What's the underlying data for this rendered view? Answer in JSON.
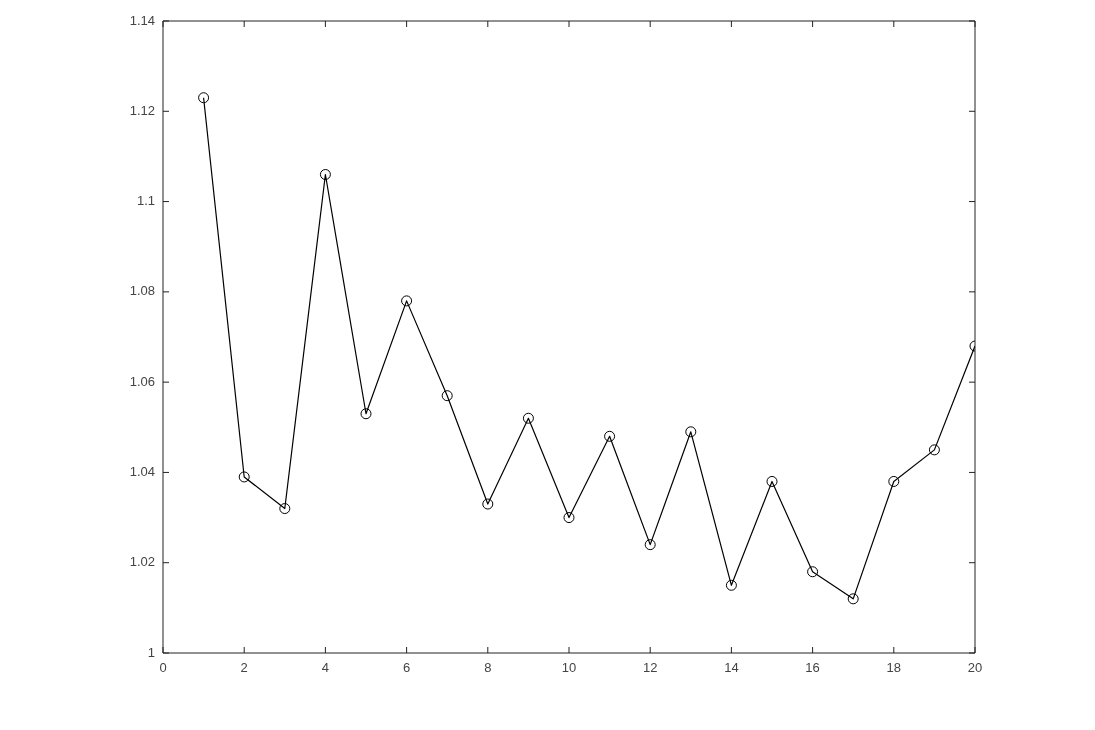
{
  "chart_data": {
    "type": "line",
    "x": [
      1,
      2,
      3,
      4,
      5,
      6,
      7,
      8,
      9,
      10,
      11,
      12,
      13,
      14,
      15,
      16,
      17,
      18,
      19,
      20
    ],
    "series": [
      {
        "color": "#000000",
        "values": [
          1.123,
          1.039,
          1.032,
          1.106,
          1.053,
          1.078,
          1.057,
          1.033,
          1.052,
          1.03,
          1.048,
          1.024,
          1.049,
          1.015,
          1.038,
          1.018,
          1.012,
          1.038,
          1.045,
          1.068
        ]
      }
    ],
    "xlim": [
      0,
      20
    ],
    "xticks": [
      0,
      2,
      4,
      6,
      8,
      10,
      12,
      14,
      16,
      18,
      20
    ],
    "ylim": [
      1,
      1.14
    ],
    "yticks": [
      1,
      1.02,
      1.04,
      1.06,
      1.08,
      1.1,
      1.12,
      1.14
    ],
    "marker": "circle",
    "line_style": "solid",
    "grid": false,
    "legend": false
  }
}
